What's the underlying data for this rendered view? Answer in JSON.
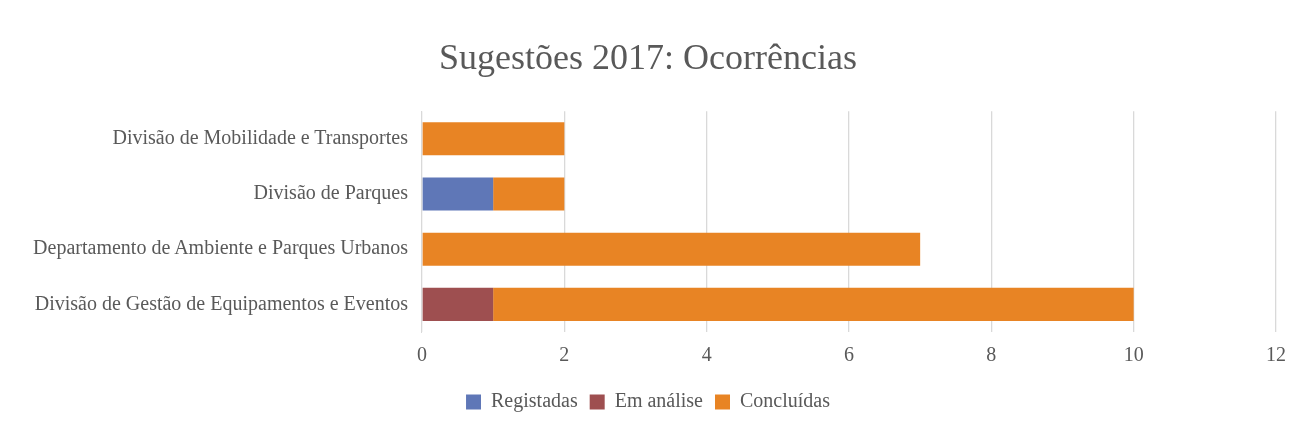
{
  "chart_data": {
    "type": "bar",
    "orientation": "horizontal",
    "stacked": true,
    "title": "Sugestões 2017: Ocorrências",
    "categories": [
      "Divisão de Mobilidade e Transportes",
      "Divisão de Parques",
      "Departamento de Ambiente e Parques Urbanos",
      "Divisão de Gestão de Equipamentos e Eventos"
    ],
    "series": [
      {
        "name": "Registadas",
        "color": "#5f77b7",
        "values": [
          0,
          1,
          0,
          0
        ]
      },
      {
        "name": "Em análise",
        "color": "#9e4f50",
        "values": [
          0,
          0,
          0,
          1
        ]
      },
      {
        "name": "Concluídas",
        "color": "#e88424",
        "values": [
          2,
          1,
          7,
          9
        ]
      }
    ],
    "xlim": [
      0,
      12
    ],
    "xticks": [
      0,
      2,
      4,
      6,
      8,
      10,
      12
    ],
    "grid": "x",
    "legend": "bottom"
  }
}
